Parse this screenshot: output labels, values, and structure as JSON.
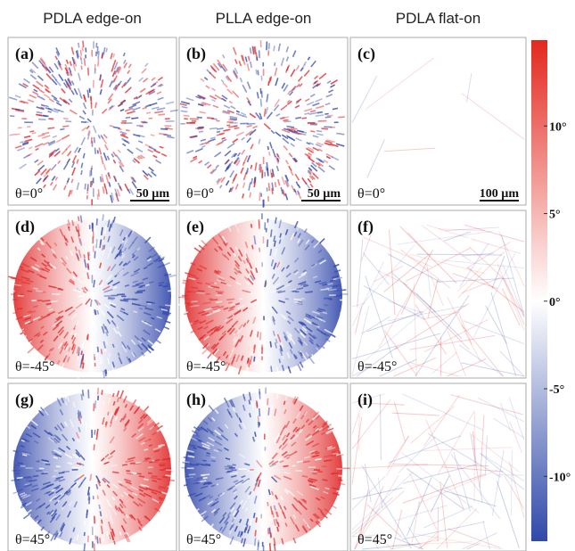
{
  "column_headers": [
    "PDLA edge-on",
    "PLLA edge-on",
    "PDLA flat-on"
  ],
  "panels": [
    {
      "label": "(a)",
      "angle": "θ=0°",
      "scale_bar": "50 µm"
    },
    {
      "label": "(b)",
      "angle": "θ=0°",
      "scale_bar": "50 µm"
    },
    {
      "label": "(c)",
      "angle": "θ=0°",
      "scale_bar": "100 µm"
    },
    {
      "label": "(d)",
      "angle": "θ=-45°"
    },
    {
      "label": "(e)",
      "angle": "θ=-45°"
    },
    {
      "label": "(f)",
      "angle": "θ=-45°"
    },
    {
      "label": "(g)",
      "angle": "θ=45°"
    },
    {
      "label": "(h)",
      "angle": "θ=45°"
    },
    {
      "label": "(i)",
      "angle": "θ=45°"
    }
  ],
  "colorbar": {
    "range": [
      -13.7,
      14.9
    ],
    "ticks": [
      {
        "value": 10,
        "label": "10°"
      },
      {
        "value": 5,
        "label": "5°"
      },
      {
        "value": 0,
        "label": "0°"
      },
      {
        "value": -5,
        "label": "-5°"
      },
      {
        "value": -10,
        "label": "-10°"
      }
    ]
  }
}
